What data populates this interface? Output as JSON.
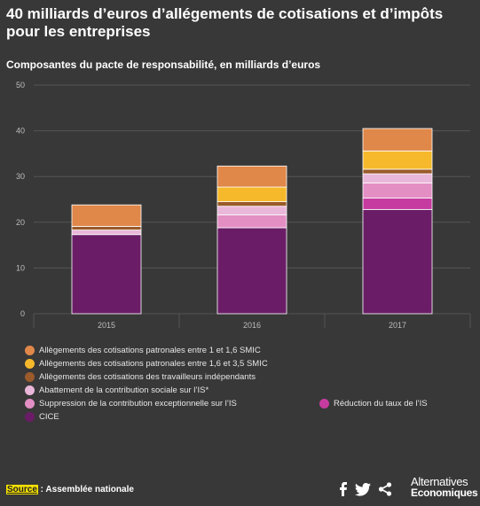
{
  "title": "40 milliards d’euros d’allégements de cotisations et d’impôts pour les entreprises",
  "subtitle": "Composantes du pacte de responsabilité, en milliards d’euros",
  "colors": {
    "background": "#383838",
    "grid": "#555555",
    "allegements_1_1_6": "#e0874a",
    "allegements_1_6_3_5": "#f6b92b",
    "independants": "#9a5a2a",
    "abattement": "#e9b7d9",
    "suppression": "#e38fc4",
    "reduction_is": "#c63ba0",
    "cice": "#6a1d66"
  },
  "chart_data": {
    "type": "bar",
    "stacked": true,
    "categories": [
      "2015",
      "2016",
      "2017"
    ],
    "ylim": [
      0,
      50
    ],
    "yticks": [
      0,
      10,
      20,
      30,
      40,
      50
    ],
    "grid": true,
    "legend_position": "bottom",
    "series": [
      {
        "name": "CICE",
        "color_key": "cice",
        "values": [
          17.3,
          18.8,
          22.8
        ]
      },
      {
        "name": "Réduction du taux de l’IS",
        "color_key": "reduction_is",
        "values": [
          0,
          0,
          2.5
        ]
      },
      {
        "name": "Suppression de la contribution exceptionnelle sur l’IS",
        "color_key": "suppression",
        "values": [
          0,
          2.8,
          3.3
        ]
      },
      {
        "name": "Abattement de la contribution sociale sur l’IS*",
        "color_key": "abattement",
        "values": [
          1.0,
          1.9,
          2.0
        ]
      },
      {
        "name": "Allègements des cotisations des travailleurs indépendants",
        "color_key": "independants",
        "values": [
          0.8,
          1.0,
          1.0
        ]
      },
      {
        "name": "Allègements des cotisations patronales entre 1,6 et 3,5 SMIC",
        "color_key": "allegements_1_6_3_5",
        "values": [
          0,
          3.2,
          4.0
        ]
      },
      {
        "name": "Allègements des cotisations patronales entre 1 et 1,6 SMIC",
        "color_key": "allegements_1_1_6",
        "values": [
          4.7,
          4.6,
          4.9
        ]
      }
    ]
  },
  "legend": {
    "left_items": [
      {
        "label": "Allègements des cotisations patronales entre 1 et 1,6 SMIC",
        "color_key": "allegements_1_1_6"
      },
      {
        "label": "Allègements des cotisations patronales entre 1,6 et 3,5 SMIC",
        "color_key": "allegements_1_6_3_5"
      },
      {
        "label": "Allègements des cotisations des travailleurs indépendants",
        "color_key": "independants"
      },
      {
        "label": "Abattement de la contribution sociale sur l’IS*",
        "color_key": "abattement"
      },
      {
        "label": "Suppression de la contribution exceptionnelle sur l’IS",
        "color_key": "suppression"
      },
      {
        "label": "CICE",
        "color_key": "cice"
      }
    ],
    "right_item": {
      "label": "Réduction du taux de l’IS",
      "color_key": "reduction_is"
    }
  },
  "footer": {
    "source_label": "Source",
    "source_text": " : Assemblée nationale"
  },
  "share_icons": [
    "facebook-icon",
    "twitter-icon",
    "share-icon"
  ],
  "brand": {
    "line1": "Alternatives",
    "line2": "Economiques"
  }
}
